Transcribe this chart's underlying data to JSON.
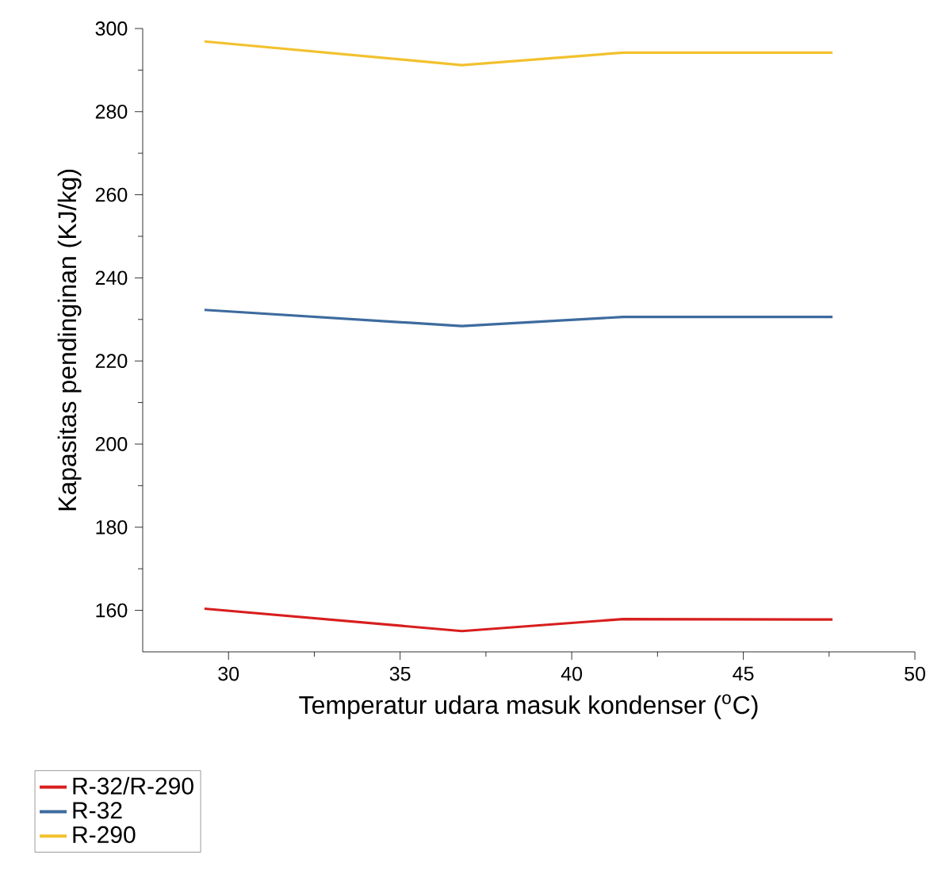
{
  "chart_data": {
    "type": "line",
    "xlabel": "Temperatur udara masuk kondenser ($^{o}$C)",
    "ylabel": "Kapasitas pendinginan (KJ/kg)",
    "x": [
      29.3,
      36.8,
      41.5,
      47.6
    ],
    "series": [
      {
        "name": "R-32/R-290",
        "color": "#d81e1e",
        "values": [
          160.4,
          155.0,
          157.9,
          157.8
        ]
      },
      {
        "name": "R-32",
        "color": "#3d6b9e",
        "values": [
          232.3,
          228.4,
          230.6,
          230.6
        ]
      },
      {
        "name": "R-290",
        "color": "#f2c12e",
        "values": [
          296.9,
          291.2,
          294.2,
          294.2
        ]
      }
    ],
    "xlim": [
      27.5,
      50
    ],
    "xticks": [
      30,
      35,
      40,
      45,
      50
    ],
    "ylim": [
      150,
      300
    ],
    "yticks": [
      160,
      180,
      200,
      220,
      240,
      260,
      280,
      300
    ],
    "grid": false,
    "legend": "bottom left",
    "marker": "none",
    "line_style": "solid"
  }
}
